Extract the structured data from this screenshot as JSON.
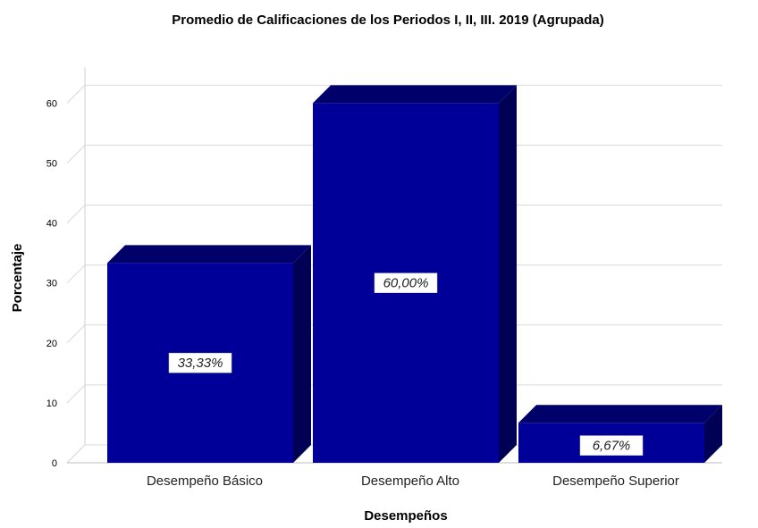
{
  "chart_data": {
    "type": "bar",
    "title": "Promedio de Calificaciones de los Periodos I, II, III. 2019 (Agrupada)",
    "xlabel": "Desempeños",
    "ylabel": "Porcentaje",
    "categories": [
      "Desempeño Básico",
      "Desempeño Alto",
      "Desempeño Superior"
    ],
    "values": [
      33.33,
      60.0,
      6.67
    ],
    "data_labels": [
      "33,33%",
      "60,00%",
      "6,67%"
    ],
    "ylim": [
      0,
      63
    ],
    "yticks": [
      "0",
      "10",
      "20",
      "30",
      "40",
      "50",
      "60"
    ],
    "grid": true,
    "style": "3d",
    "colors": {
      "bar_front": "#000099",
      "bar_top": "#00006b",
      "bar_side": "#000055",
      "grid": "#d9d9d9"
    }
  }
}
